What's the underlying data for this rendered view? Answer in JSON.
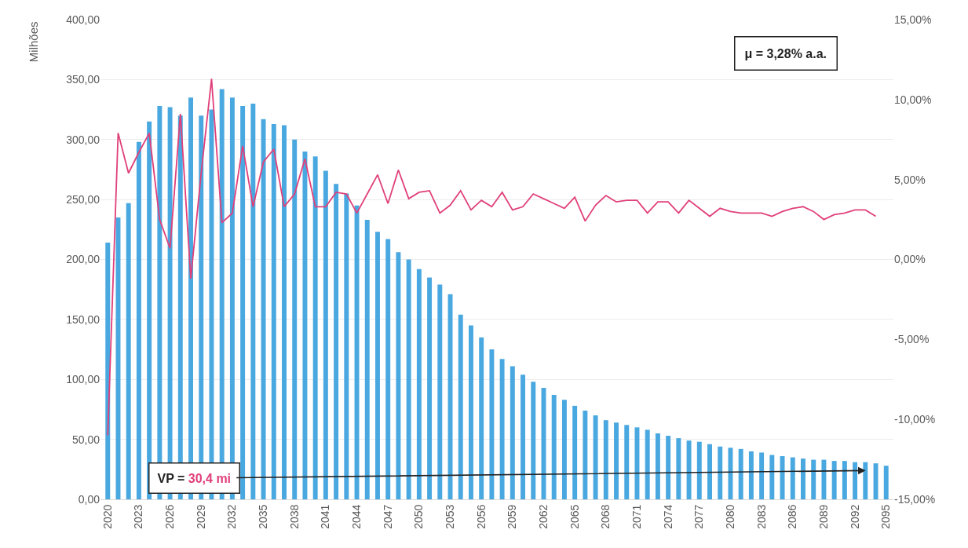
{
  "chart_data": {
    "type": "bar",
    "ylabel": "Milhões",
    "categories": [
      "2020",
      null,
      null,
      "2023",
      null,
      null,
      "2026",
      null,
      null,
      "2029",
      null,
      null,
      "2032",
      null,
      null,
      "2035",
      null,
      null,
      "2038",
      null,
      null,
      "2041",
      null,
      null,
      "2044",
      null,
      null,
      "2047",
      null,
      null,
      "2050",
      null,
      null,
      "2053",
      null,
      null,
      "2056",
      null,
      null,
      "2059",
      null,
      null,
      "2062",
      null,
      null,
      "2065",
      null,
      null,
      "2068",
      null,
      null,
      "2071",
      null,
      null,
      "2074",
      null,
      null,
      "2077",
      null,
      null,
      "2080",
      null,
      null,
      "2083",
      null,
      null,
      "2086",
      null,
      null,
      "2089",
      null,
      null,
      "2092",
      null,
      null,
      "2095"
    ],
    "series": [
      {
        "color": "#4aa8e0",
        "values": [
          214,
          235,
          247,
          298,
          315,
          328,
          327,
          320,
          335,
          320,
          325,
          342,
          335,
          328,
          330,
          317,
          313,
          312,
          300,
          290,
          286,
          274,
          263,
          255,
          245,
          233,
          223,
          217,
          206,
          200,
          192,
          185,
          179,
          171,
          154,
          145,
          135,
          125,
          117,
          111,
          104,
          98,
          93,
          87,
          83,
          78,
          74,
          70,
          66,
          64,
          62,
          60,
          58,
          55,
          53,
          51,
          49,
          48,
          46,
          44,
          43,
          42,
          40,
          39,
          37,
          36,
          35,
          34,
          33,
          33,
          32,
          32,
          31,
          31,
          30,
          28
        ]
      },
      {
        "type": "line",
        "axis": "y2",
        "color": "#e0407a",
        "values": [
          -11.0,
          7.9,
          5.4,
          6.7,
          7.9,
          2.5,
          0.7,
          9.1,
          -1.2,
          5.4,
          11.3,
          2.3,
          2.9,
          7.1,
          3.3,
          6.1,
          6.9,
          3.3,
          4.1,
          6.3,
          3.3,
          3.3,
          4.2,
          4.1,
          2.9,
          4.1,
          5.3,
          3.5,
          5.6,
          3.8,
          4.2,
          4.3,
          2.9,
          3.4,
          4.3,
          3.1,
          3.7,
          3.3,
          4.2,
          3.1,
          3.3,
          4.1,
          3.8,
          3.5,
          3.2,
          3.9,
          2.4,
          3.4,
          4.0,
          3.6,
          3.7,
          3.7,
          2.9,
          3.6,
          3.6,
          2.9,
          3.7,
          3.2,
          2.7,
          3.2,
          3.0,
          2.9,
          2.9,
          2.9,
          2.7,
          3.0,
          3.2,
          3.3,
          3.0,
          2.5,
          2.8,
          2.9,
          3.1,
          3.1,
          2.7,
          null
        ]
      }
    ],
    "ylim": [
      0,
      400
    ],
    "yticks": [
      {
        "value": 0,
        "label": "0,00"
      },
      {
        "value": 50,
        "label": "50,00"
      },
      {
        "value": 100,
        "label": "100,00"
      },
      {
        "value": 150,
        "label": "150,00"
      },
      {
        "value": 200,
        "label": "200,00"
      },
      {
        "value": 250,
        "label": "250,00"
      },
      {
        "value": 300,
        "label": "300,00"
      },
      {
        "value": 350,
        "label": "350,00"
      },
      {
        "value": 400,
        "label": "400,00"
      }
    ],
    "y2lim": [
      -15,
      15
    ],
    "y2ticks": [
      {
        "value": -15,
        "label": "-15,00%"
      },
      {
        "value": -10,
        "label": "-10,00%"
      },
      {
        "value": -5,
        "label": "-5,00%"
      },
      {
        "value": 0,
        "label": "0,00%"
      },
      {
        "value": 5,
        "label": "5,00%"
      },
      {
        "value": 10,
        "label": "10,00%"
      },
      {
        "value": 15,
        "label": "15,00%"
      }
    ],
    "grid": "y",
    "annotations": [
      "μ = 3,28% a.a.",
      "VP = 30,4 mi"
    ]
  }
}
